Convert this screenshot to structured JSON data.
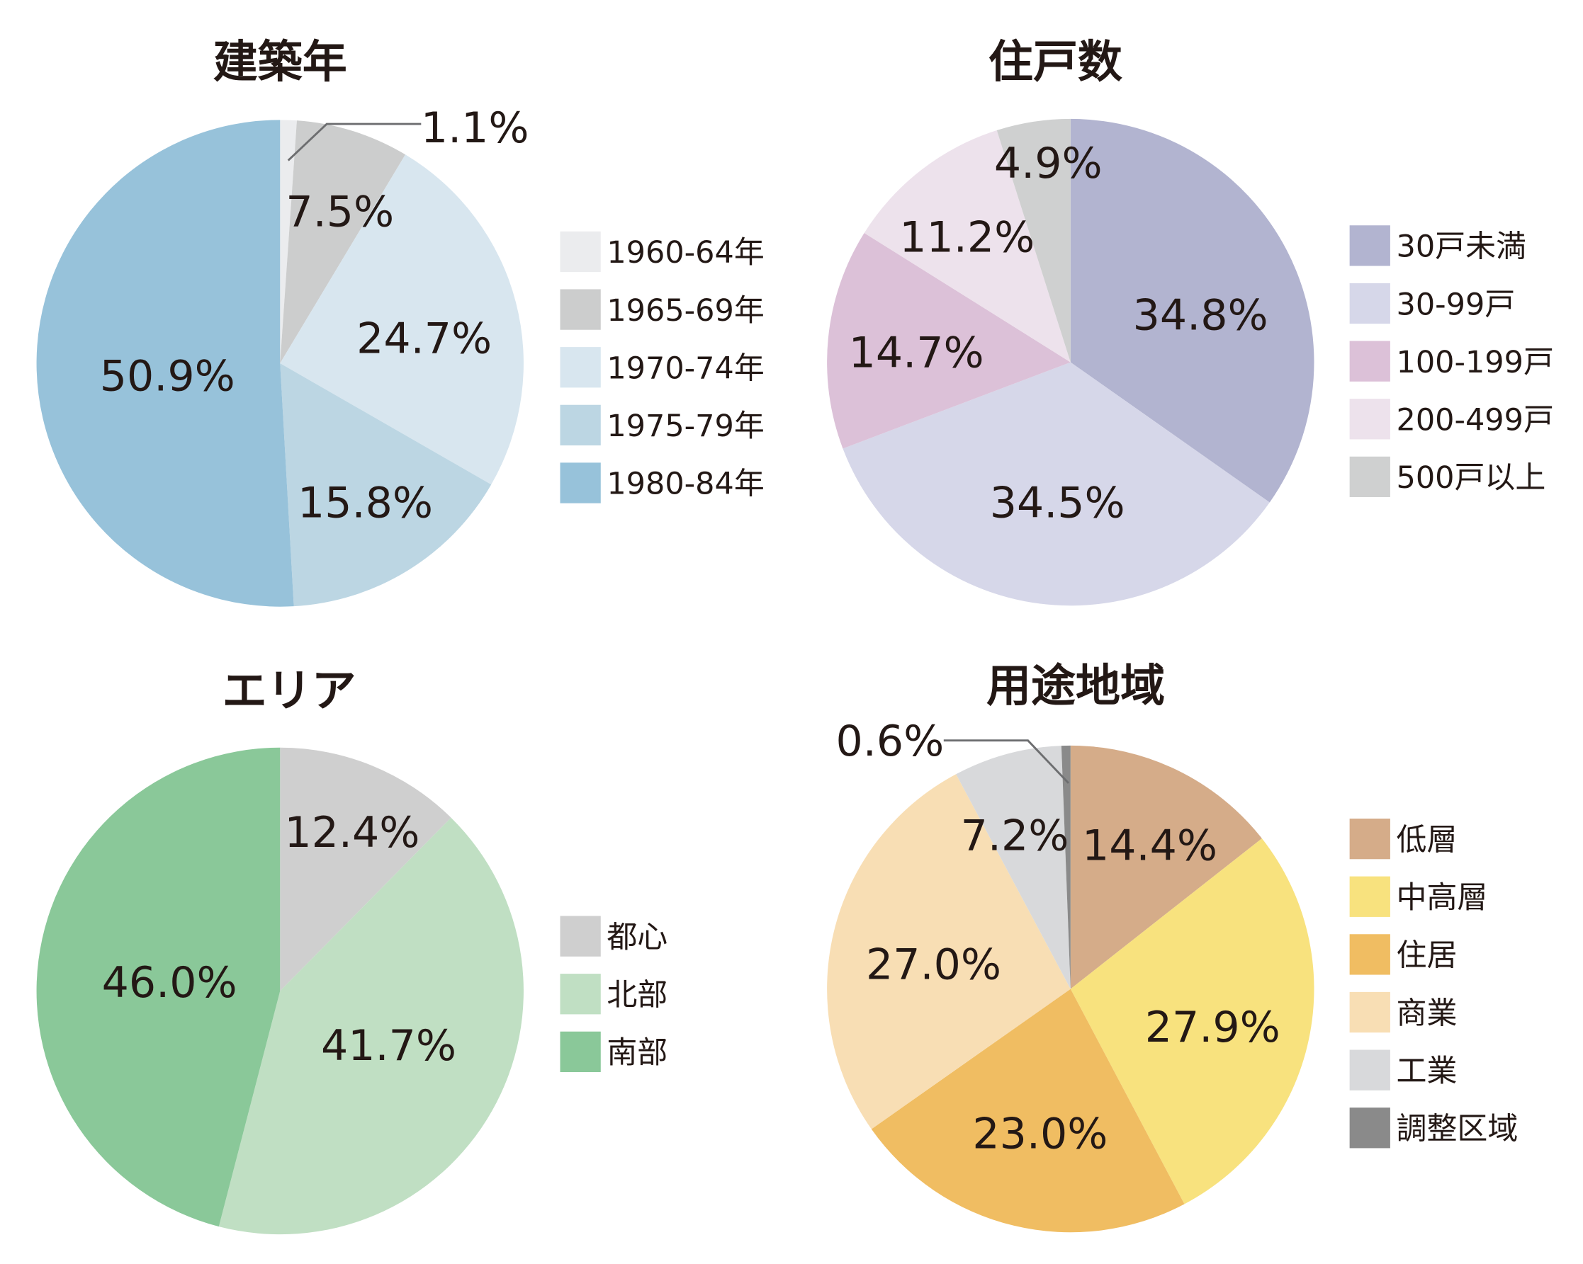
{
  "chart_data": [
    {
      "type": "pie",
      "title": "建築年",
      "categories": [
        "1960-64年",
        "1965-69年",
        "1970-74年",
        "1975-79年",
        "1980-84年"
      ],
      "values": [
        1.1,
        7.5,
        24.7,
        15.8,
        50.9
      ],
      "labels": [
        "1.1%",
        "7.5%",
        "24.7%",
        "15.8%",
        "50.9%"
      ],
      "colors": [
        "#ebecee",
        "#cccdcd",
        "#d8e6ef",
        "#bcd6e3",
        "#97c2da"
      ],
      "legend": "right"
    },
    {
      "type": "pie",
      "title": "住戸数",
      "categories": [
        "30戸未満",
        "30-99戸",
        "100-199戸",
        "200-499戸",
        "500戸以上"
      ],
      "values": [
        34.8,
        34.5,
        14.7,
        11.2,
        4.9
      ],
      "labels": [
        "34.8%",
        "34.5%",
        "14.7%",
        "11.2%",
        "4.9%"
      ],
      "colors": [
        "#b2b4d0",
        "#d6d7e9",
        "#dcc1d8",
        "#ede2ec",
        "#cfd0d0"
      ],
      "legend": "right"
    },
    {
      "type": "pie",
      "title": "エリア",
      "categories": [
        "都心",
        "北部",
        "南部"
      ],
      "values": [
        12.4,
        41.7,
        46.0
      ],
      "labels": [
        "12.4%",
        "41.7%",
        "46.0%"
      ],
      "colors": [
        "#cfcfcf",
        "#c0dfc3",
        "#8ac899"
      ],
      "legend": "right"
    },
    {
      "type": "pie",
      "title": "用途地域",
      "categories": [
        "低層",
        "中高層",
        "住居",
        "商業",
        "工業",
        "調整区域"
      ],
      "values": [
        14.4,
        27.9,
        23.0,
        27.0,
        7.2,
        0.6
      ],
      "labels": [
        "14.4%",
        "27.9%",
        "23.0%",
        "27.0%",
        "7.2%",
        "0.6%"
      ],
      "colors": [
        "#d5ac89",
        "#f8e27e",
        "#f0bd62",
        "#f8deb4",
        "#d8d9db",
        "#8a8a8a"
      ],
      "legend": "right"
    }
  ]
}
